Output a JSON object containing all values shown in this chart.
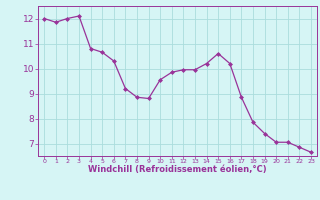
{
  "x": [
    0,
    1,
    2,
    3,
    4,
    5,
    6,
    7,
    8,
    9,
    10,
    11,
    12,
    13,
    14,
    15,
    16,
    17,
    18,
    19,
    20,
    21,
    22,
    23
  ],
  "y": [
    12.0,
    11.85,
    12.0,
    12.1,
    10.8,
    10.65,
    10.3,
    9.2,
    8.85,
    8.8,
    9.55,
    9.85,
    9.95,
    9.95,
    10.2,
    10.6,
    10.2,
    8.85,
    7.85,
    7.4,
    7.05,
    7.05,
    6.85,
    6.65
  ],
  "line_color": "#993399",
  "marker": "D",
  "marker_size": 2,
  "bg_color": "#d6f5f5",
  "grid_color": "#aadddd",
  "xlabel": "Windchill (Refroidissement éolien,°C)",
  "xlabel_color": "#993399",
  "tick_color": "#993399",
  "ylim": [
    6.5,
    12.5
  ],
  "xlim": [
    -0.5,
    23.5
  ],
  "yticks": [
    7,
    8,
    9,
    10,
    11,
    12
  ],
  "xticks": [
    0,
    1,
    2,
    3,
    4,
    5,
    6,
    7,
    8,
    9,
    10,
    11,
    12,
    13,
    14,
    15,
    16,
    17,
    18,
    19,
    20,
    21,
    22,
    23
  ]
}
